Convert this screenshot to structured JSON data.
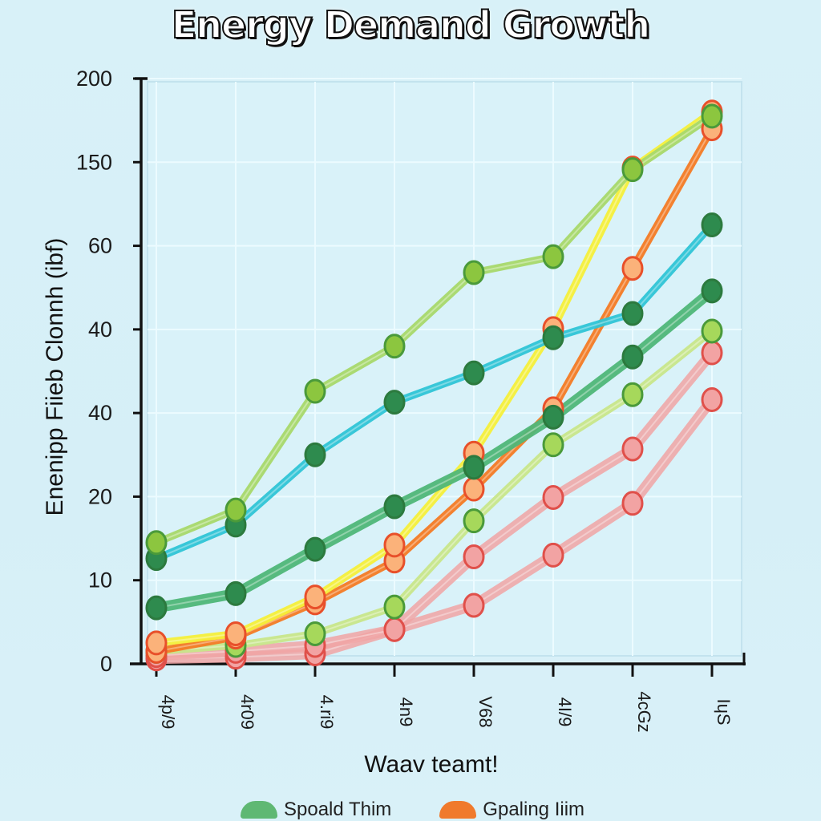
{
  "chart_data": {
    "type": "line",
    "title": "Energy Demand Growth",
    "xlabel": "Waav teamt!",
    "ylabel": "Enenipp Fiieb Clonnh (ibf)",
    "categories": [
      "4p/9",
      "4r09",
      "4.ri9",
      "4n9",
      "V68",
      "4I/9",
      "4cGz",
      "IɥS"
    ],
    "y_tick_labels": [
      "0",
      "10",
      "20",
      "40",
      "40",
      "60",
      "150",
      "200"
    ],
    "y_scale_note": "values expressed in tick-index units (0 = first tick '0', 7 = last tick '200'); printed tick labels are non-uniform",
    "ylim": [
      0,
      7
    ],
    "grid": true,
    "legend_position": "bottom",
    "legend": [
      {
        "label": "Spoald Thim",
        "color": "#5fb873"
      },
      {
        "label": "Gpaling Iiim",
        "color": "#f07a2c"
      }
    ],
    "series": [
      {
        "name": "lime",
        "color": "#a8d86a",
        "marker": "#8cc63f",
        "values": [
          1.45,
          1.84,
          3.26,
          3.8,
          4.68,
          4.87,
          5.91,
          6.55
        ]
      },
      {
        "name": "cyan",
        "color": "#2fc4d6",
        "marker": "#2e8b4e",
        "values": [
          1.26,
          1.66,
          2.5,
          3.13,
          3.48,
          3.9,
          4.19,
          5.25
        ]
      },
      {
        "name": "green",
        "color": "#4fb678",
        "marker": "#2e8b4e",
        "values": [
          0.67,
          0.84,
          1.37,
          1.88,
          2.35,
          2.95,
          3.67,
          4.46
        ]
      },
      {
        "name": "yellow",
        "color": "#f5ef3a",
        "marker": "#f5ef3a",
        "values": [
          0.25,
          0.36,
          0.8,
          1.42,
          2.52,
          4.01,
          5.93,
          6.6
        ]
      },
      {
        "name": "orange",
        "color": "#f47a24",
        "marker": "#f28a4a",
        "values": [
          0.15,
          0.32,
          0.73,
          1.23,
          2.09,
          3.05,
          4.73,
          6.4
        ]
      },
      {
        "name": "pale-lime",
        "color": "#c8e68a",
        "marker": "#a6d85b",
        "values": [
          0.15,
          0.22,
          0.36,
          0.68,
          1.71,
          2.62,
          3.22,
          3.98
        ]
      },
      {
        "name": "pink-upper",
        "color": "#f0a4a4",
        "marker": "#f2a3a3",
        "values": [
          0.1,
          0.15,
          0.22,
          0.41,
          1.28,
          1.99,
          2.57,
          3.72
        ]
      },
      {
        "name": "pink-lower",
        "color": "#f0a4a4",
        "marker": "#f2a3a3",
        "values": [
          0.06,
          0.08,
          0.12,
          0.41,
          0.7,
          1.3,
          1.92,
          3.16
        ]
      }
    ]
  }
}
